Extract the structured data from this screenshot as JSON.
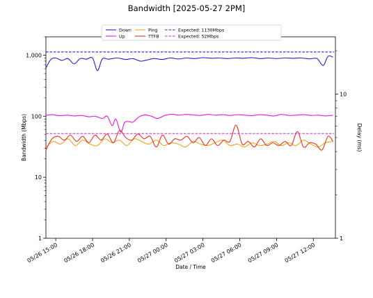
{
  "chart_data": {
    "type": "line",
    "title": "Bandwidth [2025-05-27 2PM]",
    "xlabel": "Date / Time",
    "ylabel_left": "Bandwidth (Mbps)",
    "ylabel_right": "Delay (ms)",
    "x_ticks": [
      "05/26 15:00",
      "05/26 18:00",
      "05/26 21:00",
      "05/27 00:00",
      "05/27 03:00",
      "05/27 06:00",
      "05/27 09:00",
      "05/27 12:00"
    ],
    "x_tick_hours": [
      0,
      3,
      6,
      9,
      12,
      15,
      18,
      21
    ],
    "xlim_hours": [
      -0.8,
      22.8
    ],
    "x_unit": "hours after 05/26 15:00",
    "y_left": {
      "scale": "log",
      "lim": [
        1,
        2000
      ],
      "ticks": [
        1,
        10,
        100,
        1000
      ],
      "tick_labels": [
        "1",
        "10",
        "100",
        "1,000"
      ]
    },
    "y_right": {
      "scale": "log",
      "lim": [
        1,
        25
      ],
      "ticks": [
        1,
        10
      ],
      "tick_labels": [
        "1",
        "10"
      ]
    },
    "legend": {
      "position": "top-center",
      "columns": 4
    },
    "grid": false,
    "series": [
      {
        "name": "Down",
        "axis": "left",
        "color": "#1f1fd6",
        "style": "solid",
        "x": [
          -0.8,
          -0.4,
          0,
          0.5,
          1,
          1.5,
          2,
          2.5,
          3,
          3.4,
          3.8,
          4.3,
          5,
          5.7,
          6.3,
          6.9,
          7.4,
          8,
          8.7,
          9.3,
          10,
          10.7,
          11.3,
          12,
          12.7,
          13.3,
          14,
          14.7,
          15.3,
          16,
          16.7,
          17.3,
          18,
          18.7,
          19.3,
          20,
          20.7,
          21.3,
          21.8,
          22.2,
          22.6
        ],
        "y": [
          620,
          850,
          900,
          820,
          880,
          720,
          880,
          860,
          900,
          560,
          870,
          860,
          900,
          850,
          880,
          800,
          830,
          880,
          850,
          900,
          870,
          900,
          880,
          910,
          890,
          900,
          880,
          900,
          890,
          910,
          880,
          900,
          880,
          900,
          890,
          900,
          870,
          880,
          680,
          960,
          930
        ]
      },
      {
        "name": "Up",
        "axis": "left",
        "color": "#e815e8",
        "style": "solid",
        "x": [
          -0.8,
          -0.3,
          0.3,
          0.9,
          1.5,
          2.1,
          2.7,
          3.2,
          3.8,
          4.2,
          4.6,
          4.9,
          5.3,
          5.6,
          5.9,
          6.3,
          6.8,
          7.3,
          7.8,
          8.3,
          8.9,
          9.5,
          10,
          10.6,
          11.2,
          11.8,
          12.4,
          13,
          13.6,
          14.2,
          14.8,
          15.4,
          16,
          16.6,
          17.2,
          17.8,
          18.4,
          19,
          19.6,
          20.2,
          20.8,
          21.4,
          22,
          22.6
        ],
        "y": [
          103,
          106,
          102,
          104,
          101,
          103,
          98,
          100,
          92,
          100,
          70,
          90,
          55,
          78,
          82,
          80,
          98,
          105,
          100,
          92,
          103,
          108,
          104,
          107,
          105,
          103,
          107,
          104,
          106,
          103,
          106,
          104,
          102,
          106,
          104,
          101,
          107,
          103,
          104,
          106,
          103,
          104,
          101,
          104
        ]
      },
      {
        "name": "Ping",
        "axis": "right",
        "color": "#f4a21a",
        "style": "solid",
        "x": [
          -0.8,
          -0.2,
          0.4,
          1,
          1.6,
          2.2,
          2.8,
          3.4,
          4,
          4.6,
          5.2,
          5.8,
          6.4,
          7,
          7.6,
          8.2,
          8.8,
          9.4,
          10,
          10.6,
          11.2,
          11.8,
          12.4,
          13,
          13.6,
          14.2,
          14.8,
          15.4,
          16,
          16.6,
          17.2,
          17.8,
          18.4,
          19,
          19.6,
          20.2,
          20.8,
          21.4,
          22,
          22.6
        ],
        "y": [
          4.3,
          4.7,
          4.5,
          4.9,
          4.4,
          4.8,
          4.5,
          4.4,
          4.9,
          4.6,
          4.8,
          4.4,
          4.9,
          4.7,
          4.5,
          4.8,
          4.4,
          4.6,
          4.5,
          4.3,
          4.7,
          4.5,
          4.4,
          4.6,
          4.8,
          4.4,
          4.5,
          4.3,
          4.6,
          4.4,
          4.5,
          4.7,
          4.4,
          4.6,
          4.4,
          4.8,
          4.5,
          4.3,
          4.6,
          4.7
        ]
      },
      {
        "name": "TTFB",
        "axis": "right",
        "color": "#e8341c",
        "style": "solid",
        "x": [
          -0.8,
          -0.3,
          0.2,
          0.7,
          1.2,
          1.7,
          2.2,
          2.7,
          3.2,
          3.7,
          4.2,
          4.7,
          5.2,
          5.7,
          6.2,
          6.7,
          7.2,
          7.7,
          8.2,
          8.7,
          9.2,
          9.7,
          10.2,
          10.7,
          11.2,
          11.7,
          12.2,
          12.7,
          13.2,
          13.7,
          14.2,
          14.7,
          15.2,
          15.7,
          16.2,
          16.7,
          17.2,
          17.7,
          18.2,
          18.7,
          19.2,
          19.7,
          20.2,
          20.7,
          21.2,
          21.7,
          22.2,
          22.6
        ],
        "y": [
          4.1,
          4.9,
          5.1,
          4.8,
          5.2,
          4.7,
          5.1,
          4.6,
          5.2,
          4.8,
          5.3,
          4.6,
          5.6,
          5.0,
          4.8,
          5.3,
          4.9,
          5.1,
          4.3,
          5.2,
          4.5,
          4.9,
          4.8,
          5.1,
          4.6,
          5.0,
          4.4,
          4.9,
          4.4,
          4.8,
          4.7,
          6.1,
          4.5,
          4.7,
          4.3,
          4.9,
          4.4,
          4.6,
          4.4,
          4.7,
          4.4,
          5.5,
          4.3,
          4.6,
          4.5,
          4.1,
          5.1,
          4.7
        ]
      },
      {
        "name": "Expected: 1130Mbps",
        "axis": "left",
        "color": "#1f1fd6",
        "style": "dashed",
        "constant": 1130
      },
      {
        "name": "Expected: 52Mbps",
        "axis": "left",
        "color": "#e815e8",
        "style": "dashed",
        "constant": 52
      }
    ]
  }
}
